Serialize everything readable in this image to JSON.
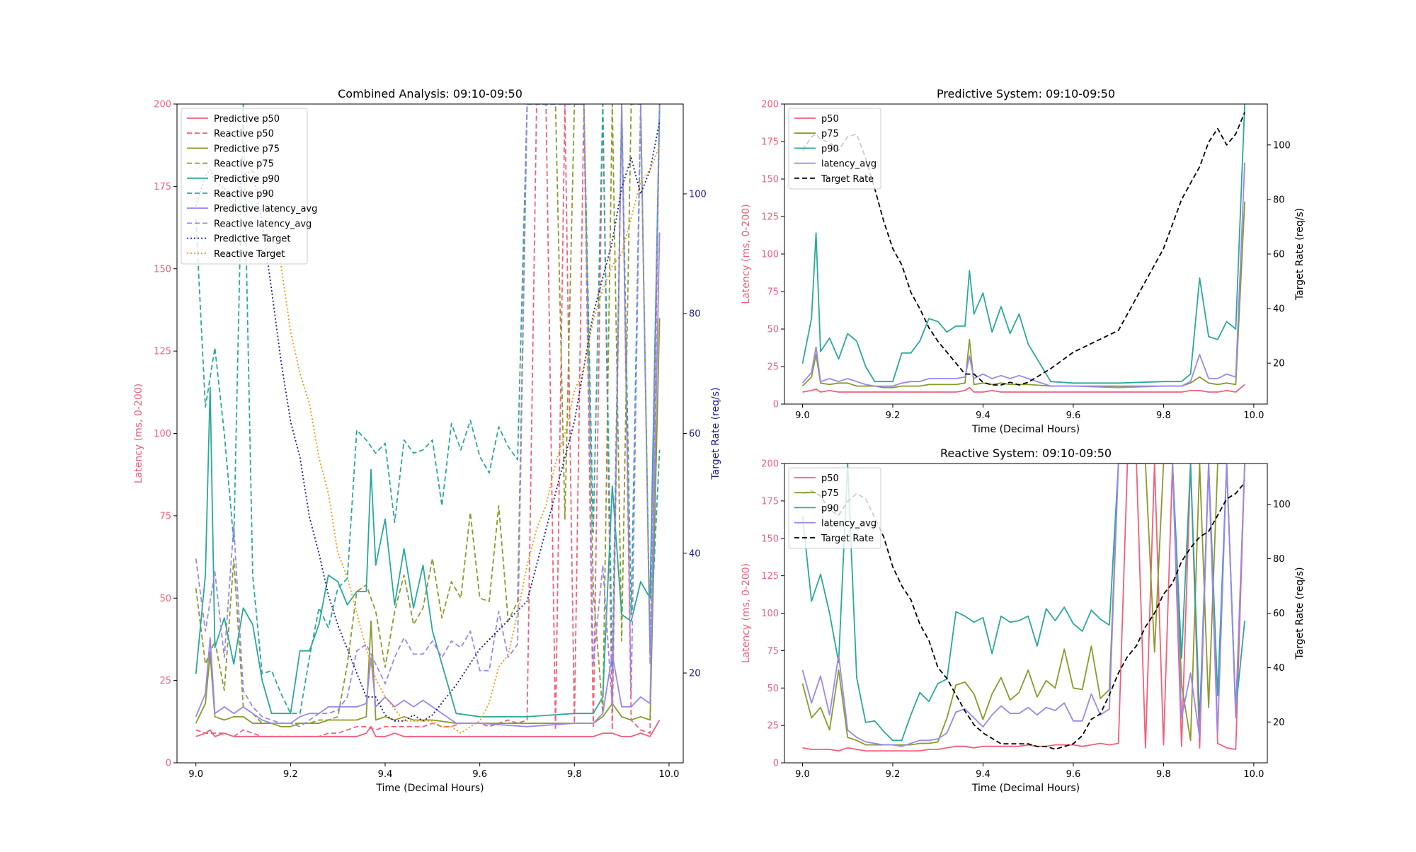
{
  "chart_data": [
    {
      "type": "line",
      "title": "Combined Analysis: 09:10-09:50",
      "xlabel": "Time (Decimal Hours)",
      "ylabel": "Latency (ms, 0-200)",
      "y2label": "Target Rate (req/s)",
      "xlim": [
        9.0,
        10.0
      ],
      "ylim": [
        0,
        200
      ],
      "y2lim": [
        5,
        115
      ],
      "xticks": [
        "9.0",
        "9.2",
        "9.4",
        "9.6",
        "9.8",
        "10.0"
      ],
      "yticks": [
        "0",
        "25",
        "50",
        "75",
        "100",
        "125",
        "150",
        "175",
        "200"
      ],
      "y2ticks": [
        "20",
        "40",
        "60",
        "80",
        "100"
      ],
      "grid": false,
      "legend": "top-left",
      "series": [
        {
          "name": "Predictive p50",
          "ref": "pred.p50",
          "axis": "left",
          "color": "#f0607a",
          "dash": "solid"
        },
        {
          "name": "Reactive p50",
          "ref": "reac.p50",
          "axis": "left",
          "color": "#f0607a",
          "dash": "dashed"
        },
        {
          "name": "Predictive p75",
          "ref": "pred.p75",
          "axis": "left",
          "color": "#8a9a2a",
          "dash": "solid"
        },
        {
          "name": "Reactive p75",
          "ref": "reac.p75",
          "axis": "left",
          "color": "#8a9a2a",
          "dash": "dashed"
        },
        {
          "name": "Predictive p90",
          "ref": "pred.p90",
          "axis": "left",
          "color": "#2aa89a",
          "dash": "solid"
        },
        {
          "name": "Reactive p90",
          "ref": "reac.p90",
          "axis": "left",
          "color": "#2aa89a",
          "dash": "dashed"
        },
        {
          "name": "Predictive latency_avg",
          "ref": "pred.avg",
          "axis": "left",
          "color": "#9b86ef",
          "dash": "solid"
        },
        {
          "name": "Reactive latency_avg",
          "ref": "reac.avg",
          "axis": "left",
          "color": "#9b86ef",
          "dash": "dashed"
        },
        {
          "name": "Predictive Target",
          "ref": "pred.target",
          "axis": "right",
          "color": "#1a1a8a",
          "dash": "dotted"
        },
        {
          "name": "Reactive Target",
          "ref": "reac.target",
          "axis": "right",
          "color": "#f0960a",
          "dash": "dotted"
        }
      ]
    },
    {
      "type": "line",
      "title": "Predictive System: 09:10-09:50",
      "xlabel": "Time (Decimal Hours)",
      "ylabel": "Latency (ms, 0-200)",
      "y2label": "Target Rate (req/s)",
      "xlim": [
        9.0,
        10.0
      ],
      "ylim": [
        0,
        200
      ],
      "y2lim": [
        5,
        115
      ],
      "xticks": [
        "9.0",
        "9.2",
        "9.4",
        "9.6",
        "9.8",
        "10.0"
      ],
      "yticks": [
        "0",
        "25",
        "50",
        "75",
        "100",
        "125",
        "150",
        "175",
        "200"
      ],
      "y2ticks": [
        "20",
        "40",
        "60",
        "80",
        "100"
      ],
      "grid": false,
      "legend": "top-left",
      "series": [
        {
          "name": "p50",
          "ref": "pred.p50",
          "axis": "left",
          "color": "#f0607a",
          "dash": "solid"
        },
        {
          "name": "p75",
          "ref": "pred.p75",
          "axis": "left",
          "color": "#8a9a2a",
          "dash": "solid"
        },
        {
          "name": "p90",
          "ref": "pred.p90",
          "axis": "left",
          "color": "#2aa89a",
          "dash": "solid"
        },
        {
          "name": "latency_avg",
          "ref": "pred.avg",
          "axis": "left",
          "color": "#9b86ef",
          "dash": "solid"
        },
        {
          "name": "Target Rate",
          "ref": "pred.target",
          "axis": "right",
          "color": "#000000",
          "dash": "dashed"
        }
      ]
    },
    {
      "type": "line",
      "title": "Reactive System: 09:10-09:50",
      "xlabel": "Time (Decimal Hours)",
      "ylabel": "Latency (ms, 0-200)",
      "y2label": "Target Rate (req/s)",
      "xlim": [
        9.0,
        10.0
      ],
      "ylim": [
        0,
        200
      ],
      "y2lim": [
        5,
        115
      ],
      "xticks": [
        "9.0",
        "9.2",
        "9.4",
        "9.6",
        "9.8",
        "10.0"
      ],
      "yticks": [
        "0",
        "25",
        "50",
        "75",
        "100",
        "125",
        "150",
        "175",
        "200"
      ],
      "y2ticks": [
        "20",
        "40",
        "60",
        "80",
        "100"
      ],
      "grid": false,
      "legend": "top-left",
      "series": [
        {
          "name": "p50",
          "ref": "reac.p50",
          "axis": "left",
          "color": "#f0607a",
          "dash": "solid"
        },
        {
          "name": "p75",
          "ref": "reac.p75",
          "axis": "left",
          "color": "#8a9a2a",
          "dash": "solid"
        },
        {
          "name": "p90",
          "ref": "reac.p90",
          "axis": "left",
          "color": "#2aa89a",
          "dash": "solid"
        },
        {
          "name": "latency_avg",
          "ref": "reac.avg",
          "axis": "left",
          "color": "#9b86ef",
          "dash": "solid"
        },
        {
          "name": "Target Rate",
          "ref": "reac.target",
          "axis": "right",
          "color": "#000000",
          "dash": "dashed"
        }
      ]
    }
  ],
  "datasets": {
    "pred": {
      "x": [
        9.0,
        9.02,
        9.03,
        9.04,
        9.06,
        9.08,
        9.1,
        9.12,
        9.14,
        9.16,
        9.18,
        9.2,
        9.22,
        9.24,
        9.26,
        9.28,
        9.3,
        9.32,
        9.34,
        9.36,
        9.37,
        9.38,
        9.4,
        9.42,
        9.44,
        9.46,
        9.48,
        9.5,
        9.55,
        9.6,
        9.7,
        9.8,
        9.84,
        9.86,
        9.88,
        9.9,
        9.92,
        9.94,
        9.96,
        9.98
      ],
      "p50": [
        8,
        9,
        10,
        8,
        9,
        8,
        8,
        8,
        8,
        8,
        8,
        8,
        8,
        8,
        8,
        8,
        8,
        8,
        8,
        9,
        11,
        8,
        8,
        9,
        8,
        8,
        8,
        8,
        8,
        8,
        8,
        8,
        8,
        9,
        9,
        8,
        8,
        9,
        8,
        13
      ],
      "p75": [
        12,
        18,
        33,
        14,
        13,
        14,
        14,
        12,
        12,
        12,
        11,
        11,
        12,
        12,
        12,
        13,
        13,
        13,
        13,
        14,
        43,
        13,
        14,
        13,
        14,
        13,
        13,
        13,
        12,
        12,
        12,
        12,
        12,
        14,
        18,
        14,
        13,
        14,
        13,
        135
      ],
      "p90": [
        27,
        57,
        114,
        35,
        44,
        30,
        47,
        42,
        25,
        15,
        15,
        15,
        34,
        34,
        42,
        57,
        55,
        48,
        52,
        52,
        89,
        60,
        74,
        48,
        65,
        47,
        60,
        40,
        15,
        14,
        14,
        15,
        15,
        20,
        84,
        45,
        43,
        55,
        50,
        200
      ],
      "avg": [
        14,
        21,
        38,
        15,
        17,
        15,
        17,
        15,
        13,
        12,
        12,
        12,
        14,
        15,
        15,
        17,
        17,
        17,
        17,
        18,
        32,
        17,
        20,
        17,
        19,
        17,
        19,
        17,
        12,
        12,
        11,
        12,
        12,
        15,
        33,
        17,
        17,
        20,
        18,
        161
      ],
      "target": [
        98,
        103,
        104,
        102,
        101,
        98,
        103,
        104,
        95,
        84,
        72,
        62,
        56,
        46,
        40,
        33,
        28,
        24,
        20,
        16,
        16,
        16,
        13,
        12,
        12,
        13,
        12,
        13,
        18,
        24,
        32,
        62,
        80,
        86,
        92,
        101,
        106,
        100,
        104,
        112
      ]
    },
    "reac": {
      "x": [
        9.0,
        9.02,
        9.04,
        9.06,
        9.08,
        9.1,
        9.12,
        9.14,
        9.16,
        9.18,
        9.2,
        9.22,
        9.24,
        9.26,
        9.28,
        9.3,
        9.32,
        9.34,
        9.36,
        9.38,
        9.4,
        9.42,
        9.44,
        9.46,
        9.48,
        9.5,
        9.52,
        9.54,
        9.56,
        9.58,
        9.6,
        9.62,
        9.64,
        9.66,
        9.68,
        9.7,
        9.72,
        9.74,
        9.76,
        9.78,
        9.8,
        9.82,
        9.84,
        9.86,
        9.88,
        9.9,
        9.92,
        9.94,
        9.96,
        9.98
      ],
      "p50": [
        10,
        9,
        9,
        9,
        8,
        10,
        9,
        8,
        8,
        8,
        8,
        8,
        8,
        8,
        9,
        9,
        10,
        11,
        11,
        10,
        11,
        11,
        11,
        11,
        11,
        12,
        11,
        11,
        12,
        12,
        12,
        11,
        12,
        13,
        12,
        13,
        200,
        200,
        10,
        200,
        12,
        200,
        11,
        200,
        10,
        200,
        13,
        10,
        9,
        200
      ],
      "p75": [
        53,
        30,
        37,
        22,
        62,
        17,
        15,
        12,
        12,
        12,
        12,
        12,
        12,
        13,
        13,
        14,
        30,
        52,
        54,
        46,
        29,
        46,
        57,
        42,
        47,
        62,
        44,
        55,
        50,
        76,
        50,
        49,
        78,
        43,
        49,
        200,
        200,
        200,
        200,
        74,
        200,
        200,
        52,
        15,
        200,
        37,
        200,
        200,
        33,
        200
      ],
      "p90": [
        165,
        108,
        126,
        100,
        67,
        200,
        57,
        27,
        28,
        21,
        15,
        15,
        32,
        47,
        41,
        53,
        56,
        101,
        98,
        94,
        97,
        73,
        98,
        94,
        95,
        98,
        78,
        103,
        95,
        104,
        93,
        88,
        102,
        96,
        92,
        200,
        200,
        200,
        200,
        200,
        200,
        200,
        70,
        200,
        28,
        200,
        45,
        200,
        35,
        95
      ],
      "avg": [
        62,
        40,
        58,
        32,
        72,
        22,
        17,
        14,
        13,
        12,
        12,
        11,
        13,
        15,
        15,
        16,
        20,
        34,
        36,
        30,
        24,
        32,
        38,
        33,
        33,
        37,
        32,
        37,
        35,
        40,
        28,
        28,
        46,
        32,
        36,
        200,
        200,
        200,
        200,
        200,
        200,
        200,
        30,
        60,
        17,
        200,
        20,
        200,
        30,
        200
      ],
      "target": [
        104,
        105,
        103,
        98,
        96,
        101,
        104,
        102,
        95,
        88,
        77,
        70,
        65,
        56,
        50,
        40,
        36,
        30,
        24,
        19,
        16,
        14,
        12,
        12,
        12,
        12,
        11,
        11,
        10,
        11,
        12,
        15,
        21,
        23,
        30,
        38,
        44,
        48,
        55,
        60,
        67,
        71,
        79,
        84,
        88,
        90,
        96,
        102,
        104,
        108
      ]
    }
  },
  "legends": [
    {
      "entries": [
        "Predictive p50",
        "Reactive p50",
        "Predictive p75",
        "Reactive p75",
        "Predictive p90",
        "Reactive p90",
        "Predictive latency_avg",
        "Reactive latency_avg",
        "Predictive Target",
        "Reactive Target"
      ]
    },
    {
      "entries": [
        "p50",
        "p75",
        "p90",
        "latency_avg",
        "Target Rate"
      ]
    },
    {
      "entries": [
        "p50",
        "p75",
        "p90",
        "latency_avg",
        "Target Rate"
      ]
    }
  ],
  "colors": {
    "left_axis": "#f0607a",
    "right_axis_combined": "#1a1a8a",
    "right_axis_subplots": "#000000"
  }
}
